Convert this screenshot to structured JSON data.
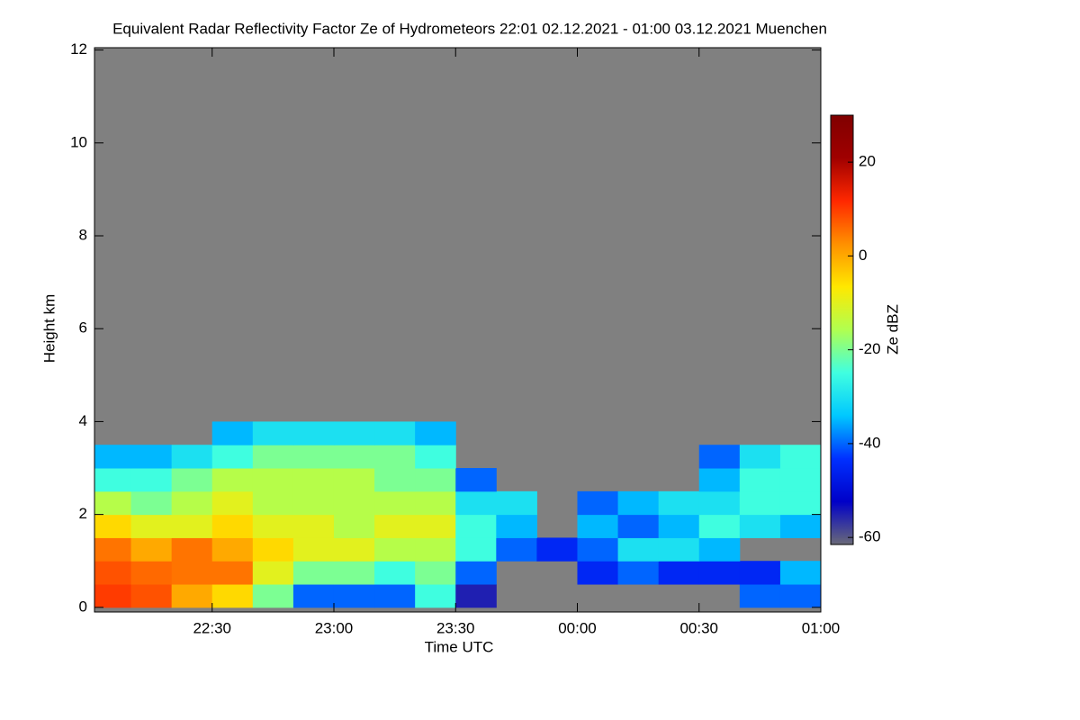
{
  "chart_data": {
    "type": "heatmap",
    "title": "Equivalent Radar Reflectivity Factor Ze of Hydrometeors   22:01 02.12.2021 - 01:00 03.12.2021 Muenchen",
    "xlabel": "Time UTC",
    "ylabel": "Height km",
    "colorbar_label": "Ze dBZ",
    "xlim": [
      22.0167,
      25.0
    ],
    "xticks": [
      {
        "value": 22.5,
        "label": "22:30"
      },
      {
        "value": 23.0,
        "label": "23:00"
      },
      {
        "value": 23.5,
        "label": "23:30"
      },
      {
        "value": 24.0,
        "label": "00:00"
      },
      {
        "value": 24.5,
        "label": "00:30"
      },
      {
        "value": 25.0,
        "label": "01:00"
      }
    ],
    "ylim": [
      -0.1,
      12.05
    ],
    "yticks": [
      0,
      2,
      4,
      6,
      8,
      10,
      12
    ],
    "clim": [
      -61.5,
      30
    ],
    "cticks": [
      20,
      0,
      -20,
      -40,
      -60
    ],
    "missing_color": "#808080",
    "colorscale": [
      "#6a6a78",
      "#0000c8",
      "#0030ff",
      "#00c8ff",
      "#40ffe0",
      "#b0ff50",
      "#ffe800",
      "#ff9000",
      "#ff2800",
      "#a00000",
      "#800000"
    ],
    "x": [
      22.0833,
      22.25,
      22.4167,
      22.5833,
      22.75,
      22.9167,
      23.0833,
      23.25,
      23.4167,
      23.5833,
      23.75,
      23.9167,
      24.0833,
      24.25,
      24.4167,
      24.5833,
      24.75,
      24.9167
    ],
    "y": [
      0.25,
      0.75,
      1.25,
      1.75,
      2.25,
      2.75,
      3.25,
      3.75
    ],
    "z": [
      [
        10,
        8,
        0,
        -5,
        -20,
        -40,
        -40,
        -40,
        -25,
        -55,
        null,
        null,
        null,
        null,
        null,
        null,
        -40,
        -40
      ],
      [
        8,
        6,
        5,
        5,
        -10,
        -20,
        -20,
        -25,
        -20,
        -40,
        null,
        null,
        -45,
        -40,
        -45,
        -45,
        -45,
        -35
      ],
      [
        5,
        0,
        5,
        0,
        -5,
        -10,
        -10,
        -15,
        -15,
        -25,
        -40,
        -45,
        -40,
        -30,
        -30,
        -35,
        null,
        null
      ],
      [
        -5,
        -10,
        -10,
        -5,
        -10,
        -10,
        -15,
        -10,
        -10,
        -25,
        -35,
        null,
        -35,
        -40,
        -35,
        -25,
        -30,
        -35
      ],
      [
        -15,
        -20,
        -15,
        -10,
        -15,
        -15,
        -15,
        -15,
        -15,
        -30,
        -30,
        null,
        -40,
        -35,
        -30,
        -30,
        -25,
        -25
      ],
      [
        -25,
        -25,
        -20,
        -15,
        -15,
        -15,
        -15,
        -20,
        -20,
        -40,
        null,
        null,
        null,
        null,
        null,
        -35,
        -25,
        -25
      ],
      [
        -35,
        -35,
        -30,
        -25,
        -20,
        -20,
        -20,
        -20,
        -25,
        null,
        null,
        null,
        null,
        null,
        null,
        -40,
        -30,
        -25
      ],
      [
        null,
        null,
        null,
        -35,
        -30,
        -30,
        -30,
        -30,
        -35,
        null,
        null,
        null,
        null,
        null,
        null,
        null,
        null,
        null
      ]
    ]
  }
}
